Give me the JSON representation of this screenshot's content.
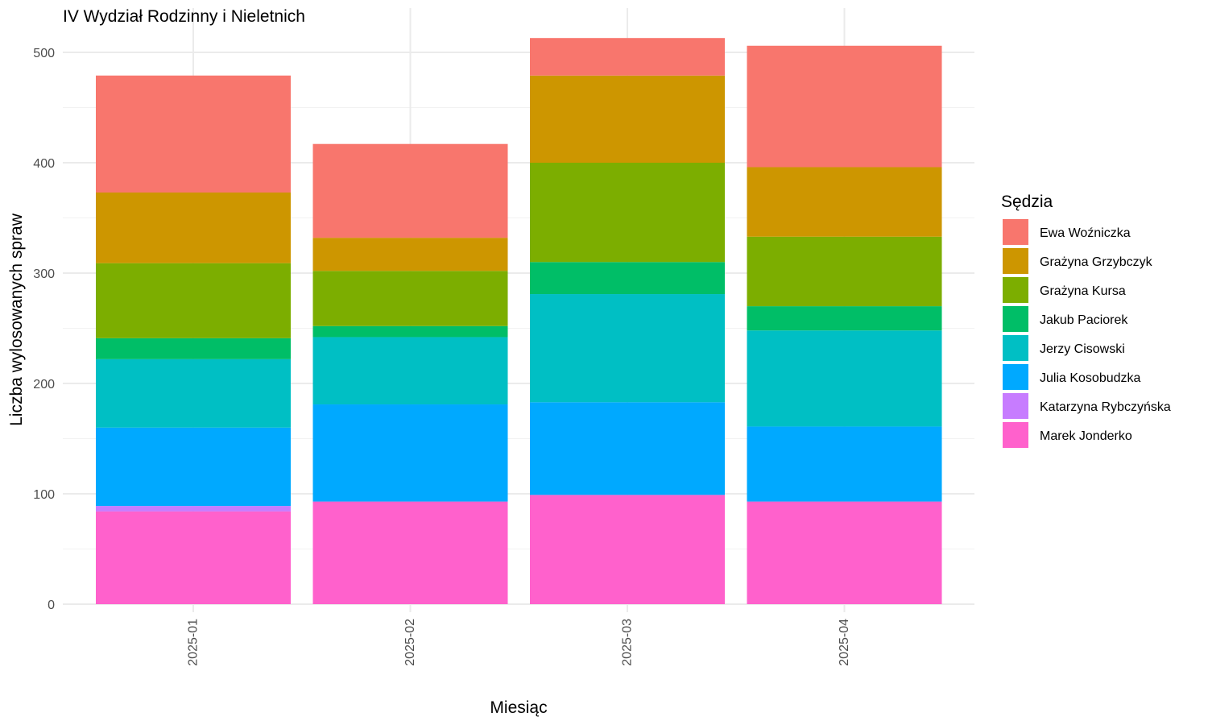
{
  "chart_data": {
    "type": "bar",
    "stacked": true,
    "title": "IV Wydział Rodzinny i Nieletnich",
    "xlabel": "Miesiąc",
    "ylabel": "Liczba wylosowanych spraw",
    "categories": [
      "2025-01",
      "2025-02",
      "2025-03",
      "2025-04"
    ],
    "ylim": [
      0,
      520
    ],
    "yticks": [
      0,
      100,
      200,
      300,
      400,
      500
    ],
    "grid": true,
    "legend": {
      "title": "Sędzia",
      "position": "right"
    },
    "series": [
      {
        "name": "Ewa Woźniczka",
        "color": "#F8766D",
        "values": [
          106,
          85,
          34,
          110
        ]
      },
      {
        "name": "Grażyna Grzybczyk",
        "color": "#CD9600",
        "values": [
          64,
          30,
          79,
          63
        ]
      },
      {
        "name": "Grażyna Kursa",
        "color": "#7CAE00",
        "values": [
          68,
          50,
          90,
          63
        ]
      },
      {
        "name": "Jakub Paciorek",
        "color": "#00BE67",
        "values": [
          19,
          10,
          29,
          22
        ]
      },
      {
        "name": "Jerzy Cisowski",
        "color": "#00BFC4",
        "values": [
          62,
          61,
          98,
          87
        ]
      },
      {
        "name": "Julia Kosobudzka",
        "color": "#00A9FF",
        "values": [
          71,
          88,
          84,
          68
        ]
      },
      {
        "name": "Katarzyna Rybczyńska",
        "color": "#C77CFF",
        "values": [
          5,
          0,
          0,
          0
        ]
      },
      {
        "name": "Marek Jonderko",
        "color": "#FF61CC",
        "values": [
          84,
          93,
          99,
          93
        ]
      }
    ]
  }
}
